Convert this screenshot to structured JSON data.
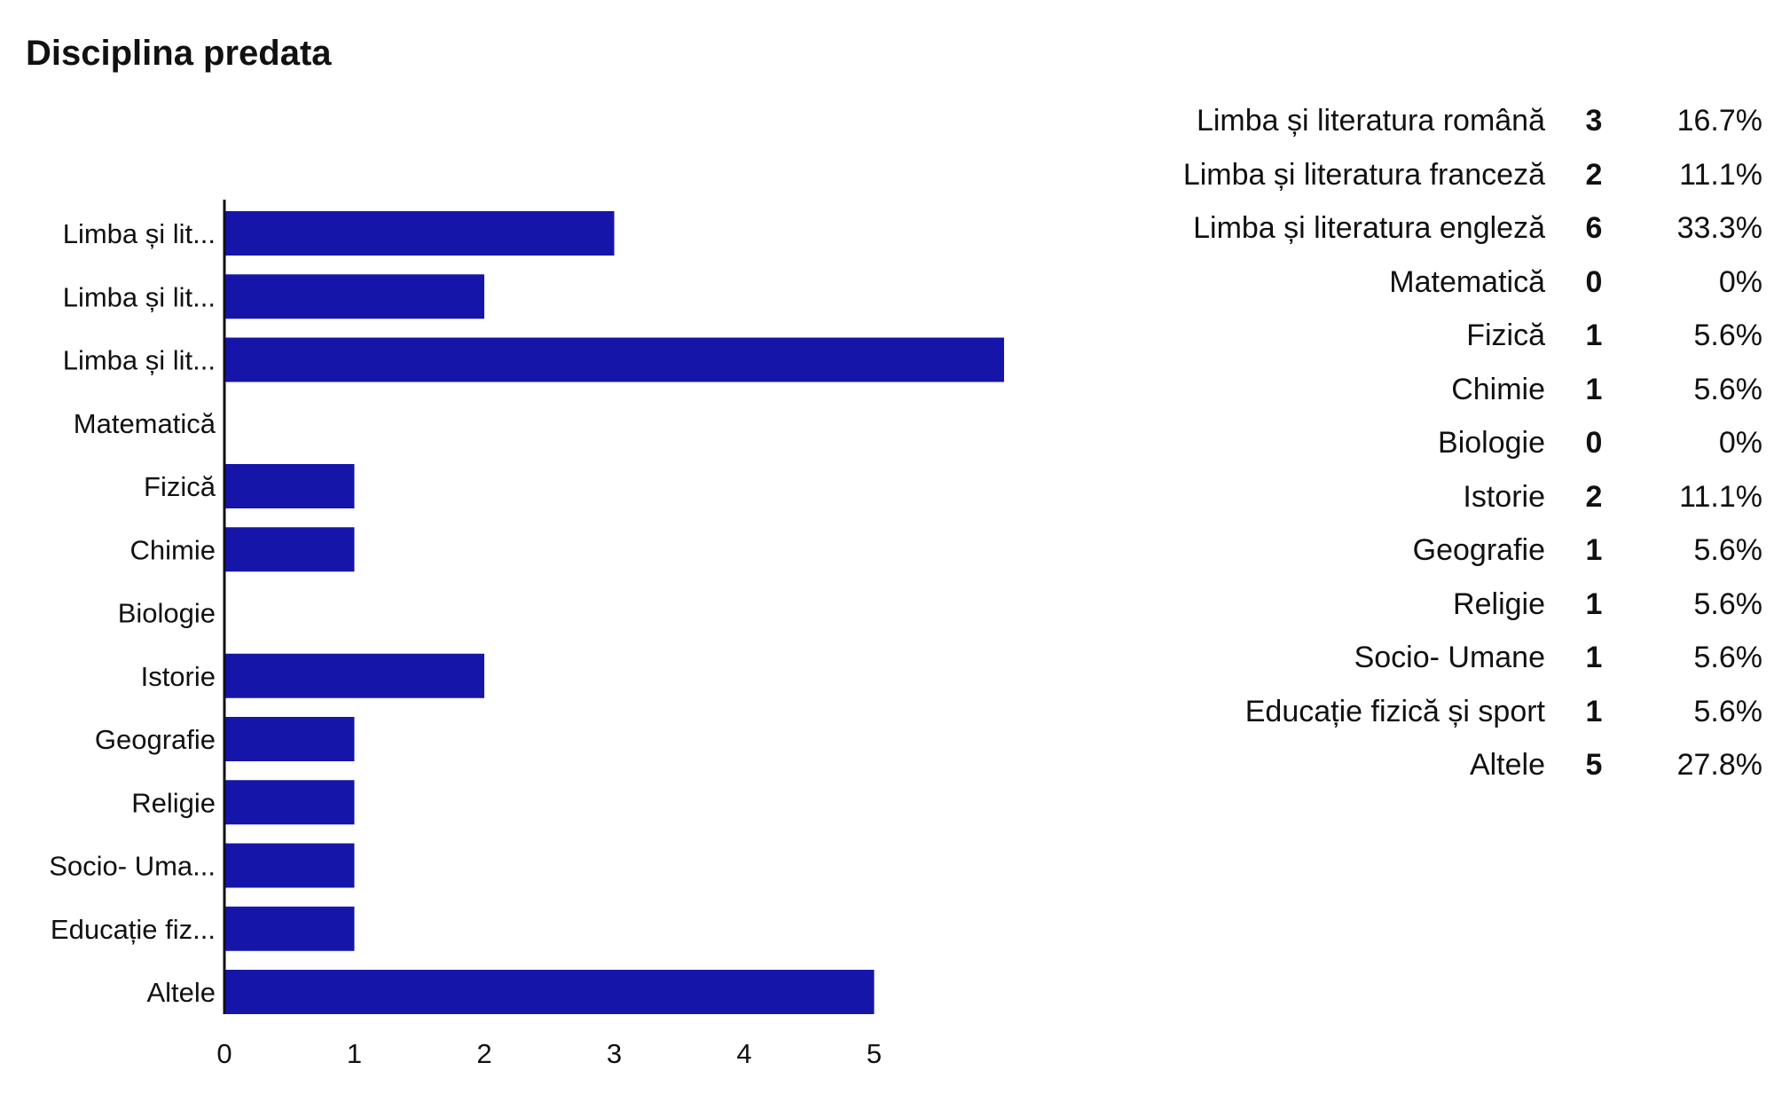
{
  "title": "Disciplina predata",
  "chart_data": {
    "type": "bar",
    "orientation": "horizontal",
    "title": "Disciplina predata",
    "xlabel": "",
    "ylabel": "",
    "categories": [
      "Limba și literatura română",
      "Limba și literatura franceză",
      "Limba și literatura engleză",
      "Matematică",
      "Fizică",
      "Chimie",
      "Biologie",
      "Istorie",
      "Geografie",
      "Religie",
      "Socio- Umane",
      "Educație fizică și sport",
      "Altele"
    ],
    "tick_labels": [
      "Limba și lit...",
      "Limba și lit...",
      "Limba și lit...",
      "Matematică",
      "Fizică",
      "Chimie",
      "Biologie",
      "Istorie",
      "Geografie",
      "Religie",
      "Socio- Uma...",
      "Educație fiz...",
      "Altele"
    ],
    "values": [
      3,
      2,
      6,
      0,
      1,
      1,
      0,
      2,
      1,
      1,
      1,
      1,
      5
    ],
    "xlim": [
      0,
      6
    ],
    "xticks": [
      0,
      1,
      2,
      3,
      4,
      5
    ],
    "grid": false,
    "legend": "none",
    "bar_color": "#1515aa"
  },
  "summary": [
    {
      "label": "Limba și literatura română",
      "count": "3",
      "percent": "16.7%"
    },
    {
      "label": "Limba și literatura franceză",
      "count": "2",
      "percent": "11.1%"
    },
    {
      "label": "Limba și literatura engleză",
      "count": "6",
      "percent": "33.3%"
    },
    {
      "label": "Matematică",
      "count": "0",
      "percent": "0%"
    },
    {
      "label": "Fizică",
      "count": "1",
      "percent": "5.6%"
    },
    {
      "label": "Chimie",
      "count": "1",
      "percent": "5.6%"
    },
    {
      "label": "Biologie",
      "count": "0",
      "percent": "0%"
    },
    {
      "label": "Istorie",
      "count": "2",
      "percent": "11.1%"
    },
    {
      "label": "Geografie",
      "count": "1",
      "percent": "5.6%"
    },
    {
      "label": "Religie",
      "count": "1",
      "percent": "5.6%"
    },
    {
      "label": "Socio- Umane",
      "count": "1",
      "percent": "5.6%"
    },
    {
      "label": "Educație fizică și sport",
      "count": "1",
      "percent": "5.6%"
    },
    {
      "label": "Altele",
      "count": "5",
      "percent": "27.8%"
    }
  ]
}
